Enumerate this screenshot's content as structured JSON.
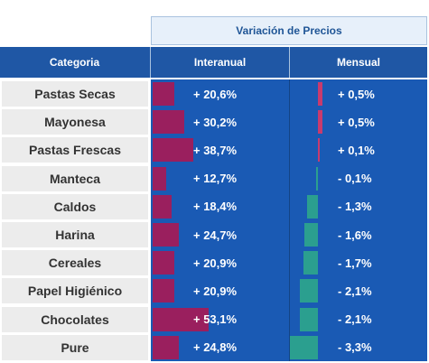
{
  "header": {
    "group_title": "Variación de Precios",
    "category_label": "Categoria",
    "interanual_label": "Interanual",
    "mensual_label": "Mensual"
  },
  "colors": {
    "header_blue": "#1f57a5",
    "body_blue": "#1a5ab4",
    "interanual_bar": "#9a1f5e",
    "mensual_positive": "#c83b6e",
    "mensual_negative": "#2b9f8f"
  },
  "chart_data": {
    "type": "table",
    "categories": [
      "Pastas Secas",
      "Mayonesa",
      "Pastas Frescas",
      "Manteca",
      "Caldos",
      "Harina",
      "Cereales",
      "Papel Higiénico",
      "Chocolates",
      "Pure"
    ],
    "series": [
      {
        "name": "Interanual",
        "values": [
          20.6,
          30.2,
          38.7,
          12.7,
          18.4,
          24.7,
          20.9,
          20.9,
          53.1,
          24.8
        ],
        "labels": [
          "+ 20,6%",
          "+ 30,2%",
          "+ 38,7%",
          "+ 12,7%",
          "+ 18,4%",
          "+ 24,7%",
          "+ 20,9%",
          "+ 20,9%",
          "+ 53,1%",
          "+ 24,8%"
        ]
      },
      {
        "name": "Mensual",
        "values": [
          0.5,
          0.5,
          0.1,
          -0.1,
          -1.3,
          -1.6,
          -1.7,
          -2.1,
          -2.1,
          -3.3
        ],
        "labels": [
          "+ 0,5%",
          "+ 0,5%",
          "+ 0,1%",
          "- 0,1%",
          "- 1,3%",
          "- 1,6%",
          "- 1,7%",
          "- 2,1%",
          "- 2,1%",
          "- 3,3%"
        ]
      }
    ]
  }
}
